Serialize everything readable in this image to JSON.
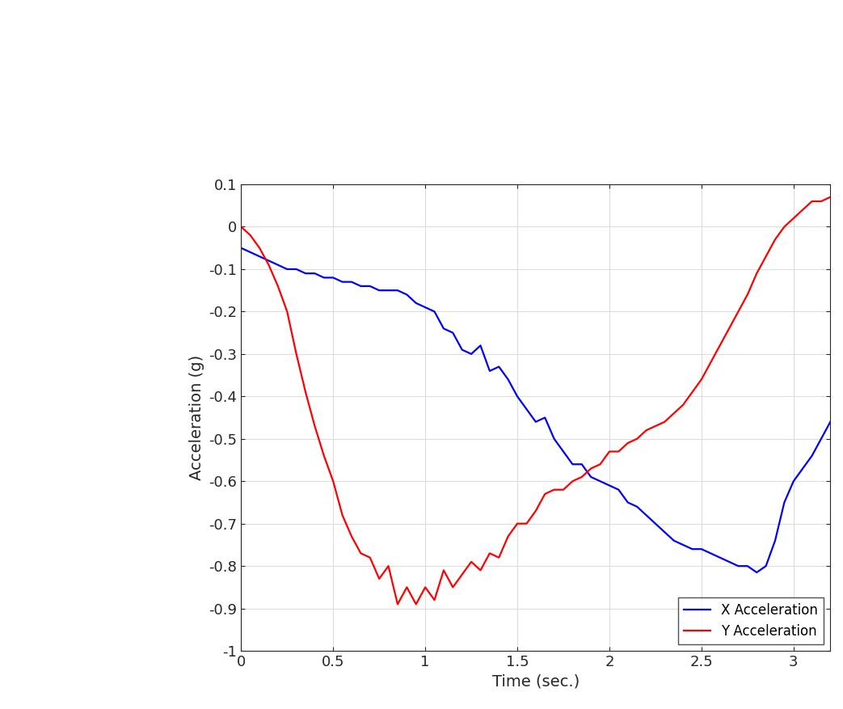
{
  "chart_data": {
    "type": "line",
    "xlabel": "Time (sec.)",
    "ylabel": "Acceleration (g)",
    "x": [
      0,
      0.05,
      0.1,
      0.15,
      0.2,
      0.25,
      0.3,
      0.35,
      0.4,
      0.45,
      0.5,
      0.55,
      0.6,
      0.65,
      0.7,
      0.75,
      0.8,
      0.85,
      0.9,
      0.95,
      1.0,
      1.05,
      1.1,
      1.15,
      1.2,
      1.25,
      1.3,
      1.35,
      1.4,
      1.45,
      1.5,
      1.55,
      1.6,
      1.65,
      1.7,
      1.75,
      1.8,
      1.85,
      1.9,
      1.95,
      2.0,
      2.05,
      2.1,
      2.15,
      2.2,
      2.25,
      2.3,
      2.35,
      2.4,
      2.45,
      2.5,
      2.55,
      2.6,
      2.65,
      2.7,
      2.75,
      2.8,
      2.85,
      2.9,
      2.95,
      3.0,
      3.05,
      3.1,
      3.15,
      3.2
    ],
    "series": [
      {
        "name": "X Acceleration",
        "color": "#0000ff",
        "values": [
          -0.05,
          -0.06,
          -0.07,
          -0.08,
          -0.09,
          -0.1,
          -0.1,
          -0.11,
          -0.11,
          -0.12,
          -0.12,
          -0.13,
          -0.13,
          -0.14,
          -0.14,
          -0.15,
          -0.15,
          -0.15,
          -0.16,
          -0.18,
          -0.19,
          -0.2,
          -0.24,
          -0.25,
          -0.29,
          -0.3,
          -0.28,
          -0.34,
          -0.33,
          -0.36,
          -0.4,
          -0.43,
          -0.46,
          -0.45,
          -0.5,
          -0.53,
          -0.56,
          -0.56,
          -0.59,
          -0.6,
          -0.61,
          -0.62,
          -0.65,
          -0.66,
          -0.68,
          -0.7,
          -0.72,
          -0.74,
          -0.75,
          -0.76,
          -0.76,
          -0.77,
          -0.78,
          -0.79,
          -0.8,
          -0.8,
          -0.815,
          -0.8,
          -0.74,
          -0.65,
          -0.6,
          -0.57,
          -0.54,
          -0.5,
          -0.46
        ]
      },
      {
        "name": "Y Acceleration",
        "color": "#ff0000",
        "values": [
          0.0,
          -0.02,
          -0.05,
          -0.09,
          -0.14,
          -0.2,
          -0.3,
          -0.39,
          -0.47,
          -0.54,
          -0.6,
          -0.68,
          -0.73,
          -0.77,
          -0.78,
          -0.83,
          -0.8,
          -0.89,
          -0.85,
          -0.89,
          -0.85,
          -0.88,
          -0.81,
          -0.85,
          -0.82,
          -0.79,
          -0.81,
          -0.77,
          -0.78,
          -0.73,
          -0.7,
          -0.7,
          -0.67,
          -0.63,
          -0.62,
          -0.62,
          -0.6,
          -0.59,
          -0.57,
          -0.56,
          -0.53,
          -0.53,
          -0.51,
          -0.5,
          -0.48,
          -0.47,
          -0.46,
          -0.44,
          -0.42,
          -0.39,
          -0.36,
          -0.32,
          -0.28,
          -0.24,
          -0.2,
          -0.16,
          -0.11,
          -0.07,
          -0.03,
          0.0,
          0.02,
          0.04,
          0.06,
          0.06,
          0.07
        ]
      }
    ],
    "xlim": [
      0,
      3.2
    ],
    "xticks": [
      0,
      0.5,
      1,
      1.5,
      2,
      2.5,
      3
    ],
    "ylim": [
      -1,
      0.1
    ],
    "yticks": [
      -1,
      -0.9,
      -0.8,
      -0.7,
      -0.6,
      -0.5,
      -0.4,
      -0.3,
      -0.2,
      -0.1,
      0,
      0.1
    ],
    "grid": true,
    "legend": "lower right"
  }
}
